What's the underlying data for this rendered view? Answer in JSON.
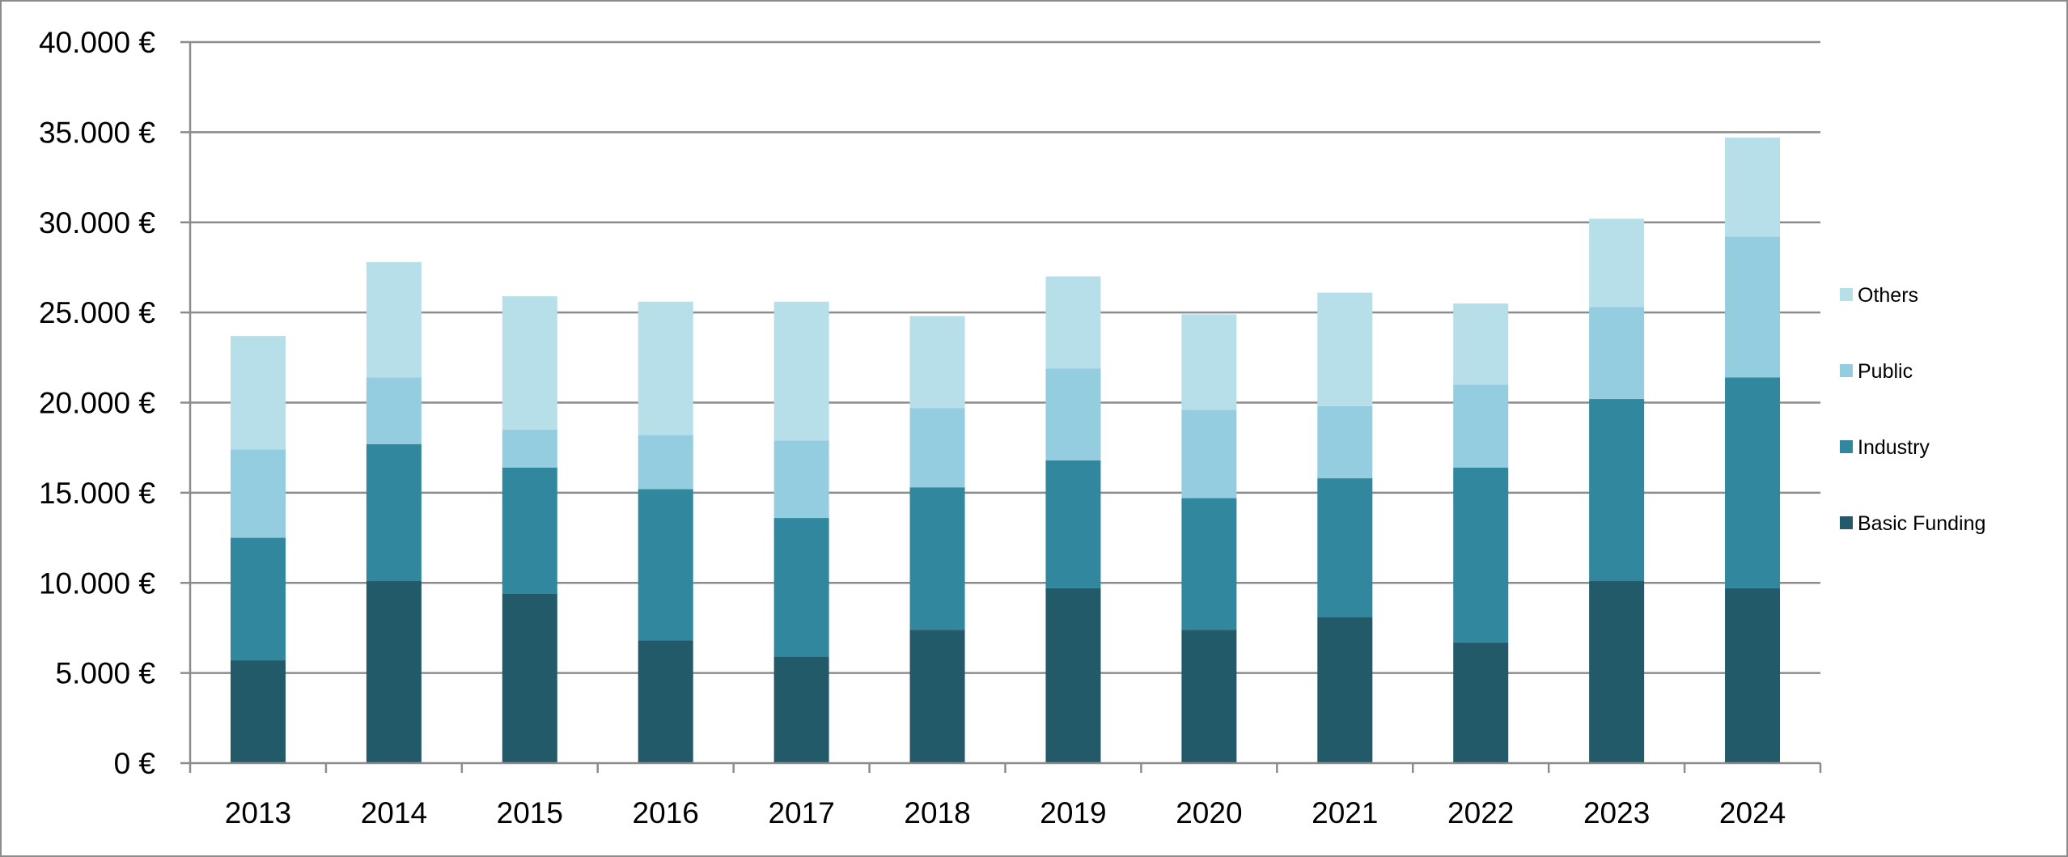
{
  "chart_data": {
    "type": "bar",
    "stacked": true,
    "categories": [
      "2013",
      "2014",
      "2015",
      "2016",
      "2017",
      "2018",
      "2019",
      "2020",
      "2021",
      "2022",
      "2023",
      "2024"
    ],
    "series": [
      {
        "name": "Basic Funding",
        "color": "#225a69",
        "values": [
          5700,
          10100,
          9400,
          6800,
          5900,
          7400,
          9700,
          7400,
          8100,
          6700,
          10100,
          9700
        ]
      },
      {
        "name": "Industry",
        "color": "#31879d",
        "values": [
          6800,
          7600,
          7000,
          8400,
          7700,
          7900,
          7100,
          7300,
          7700,
          9700,
          10100,
          11700
        ]
      },
      {
        "name": "Public",
        "color": "#94cddf",
        "values": [
          4900,
          3700,
          2100,
          3000,
          4300,
          4400,
          5100,
          4900,
          4000,
          4600,
          5100,
          7800
        ]
      },
      {
        "name": "Others",
        "color": "#b7dfe9",
        "values": [
          6300,
          6400,
          7400,
          7400,
          7700,
          5100,
          5100,
          5300,
          6300,
          4500,
          4900,
          5500
        ]
      }
    ],
    "ylim": [
      0,
      40000
    ],
    "yticks": [
      0,
      5000,
      10000,
      15000,
      20000,
      25000,
      30000,
      35000,
      40000
    ],
    "ytick_labels": [
      "0 €",
      "5.000 €",
      "10.000 €",
      "15.000 €",
      "20.000 €",
      "25.000 €",
      "30.000 €",
      "35.000 €",
      "40.000 €"
    ],
    "grid": true,
    "legend_position": "right",
    "legend_order": [
      "Others",
      "Public",
      "Industry",
      "Basic Funding"
    ]
  },
  "colors": {
    "grid": "#8c8c8c",
    "axis": "#8c8c8c"
  }
}
